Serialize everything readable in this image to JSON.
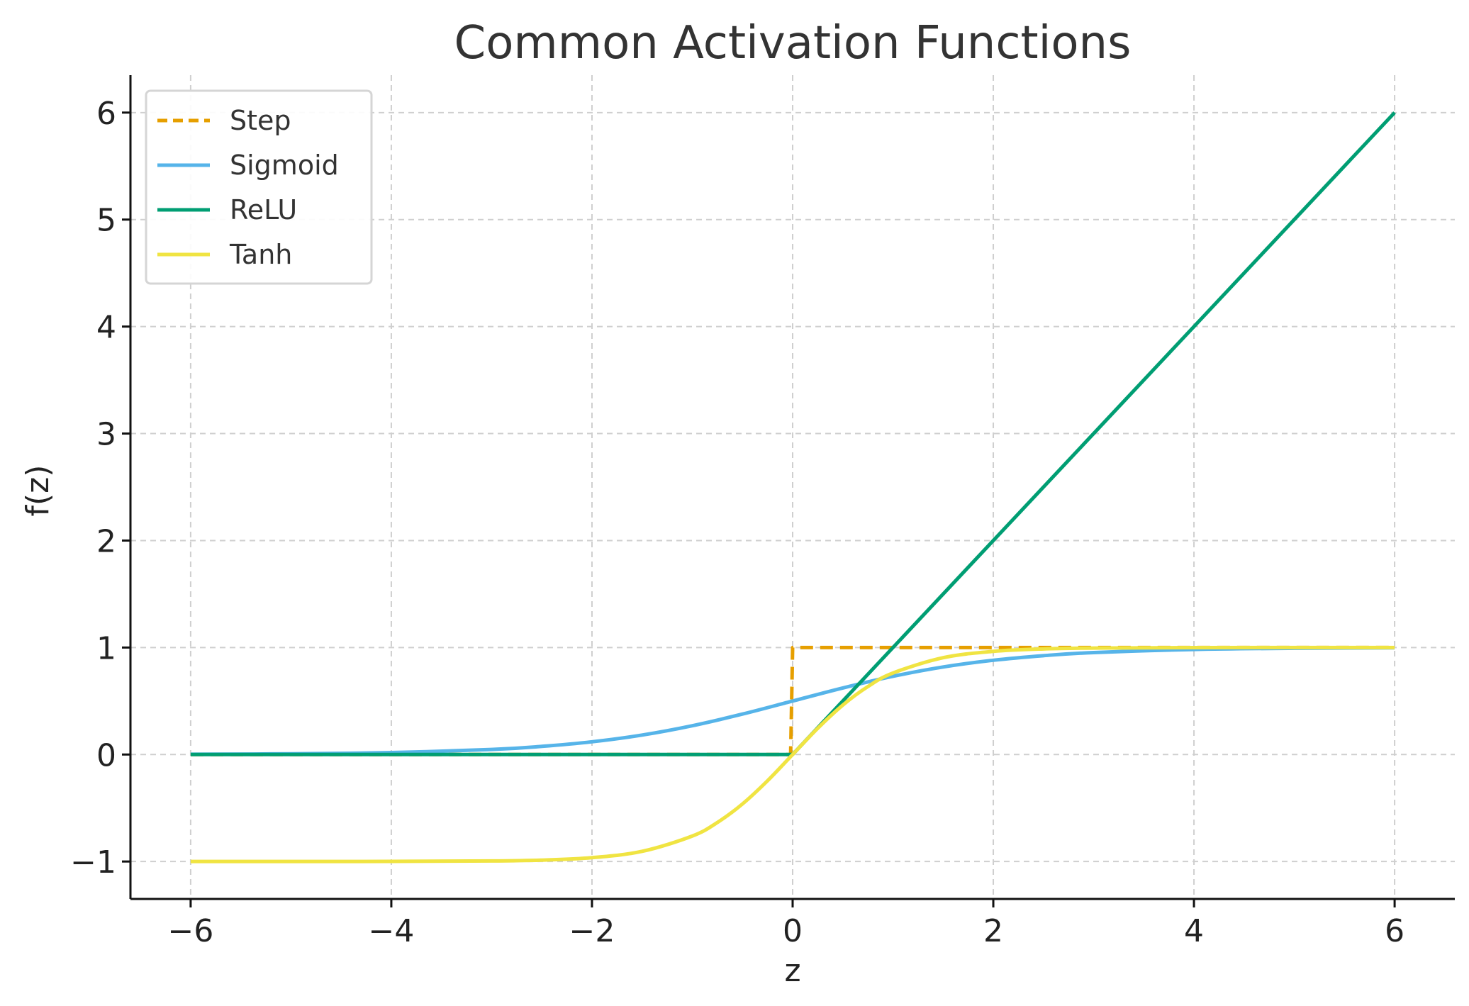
{
  "chart_data": {
    "type": "line",
    "title": "Common Activation Functions",
    "xlabel": "z",
    "ylabel": "f(z)",
    "xlim": [
      -6.6,
      6.6
    ],
    "ylim": [
      -1.35,
      6.35
    ],
    "xticks": [
      -6,
      -4,
      -2,
      0,
      2,
      4,
      6
    ],
    "yticks": [
      -1,
      0,
      1,
      2,
      3,
      4,
      5,
      6
    ],
    "xtick_labels": [
      "−6",
      "−4",
      "−2",
      "0",
      "2",
      "4",
      "6"
    ],
    "ytick_labels": [
      "−1",
      "0",
      "1",
      "2",
      "3",
      "4",
      "5",
      "6"
    ],
    "grid": true,
    "legend_position": "top-left",
    "series": [
      {
        "name": "Step",
        "color": "#E69F00",
        "style": "dashed",
        "x": [
          -6,
          -0.02,
          0,
          6
        ],
        "y": [
          0,
          0,
          1,
          1
        ]
      },
      {
        "name": "Sigmoid",
        "color": "#56B4E9",
        "style": "solid",
        "x": [
          -6,
          -5,
          -4,
          -3,
          -2.5,
          -2,
          -1.5,
          -1,
          -0.5,
          0,
          0.5,
          1,
          1.5,
          2,
          2.5,
          3,
          4,
          5,
          6
        ],
        "y": [
          0.0025,
          0.0067,
          0.018,
          0.047,
          0.076,
          0.119,
          0.182,
          0.269,
          0.378,
          0.5,
          0.622,
          0.731,
          0.818,
          0.881,
          0.924,
          0.953,
          0.982,
          0.993,
          0.9975
        ]
      },
      {
        "name": "ReLU",
        "color": "#009E73",
        "style": "solid",
        "x": [
          -6,
          0,
          6
        ],
        "y": [
          0,
          0,
          6
        ]
      },
      {
        "name": "Tanh",
        "color": "#F0E442",
        "style": "solid",
        "x": [
          -6,
          -4,
          -3,
          -2.5,
          -2,
          -1.5,
          -1,
          -0.75,
          -0.5,
          -0.25,
          0,
          0.25,
          0.5,
          0.75,
          1,
          1.5,
          2,
          2.5,
          3,
          4,
          6
        ],
        "y": [
          -1,
          -0.999,
          -0.995,
          -0.987,
          -0.964,
          -0.905,
          -0.762,
          -0.635,
          -0.462,
          -0.245,
          0,
          0.245,
          0.462,
          0.635,
          0.762,
          0.905,
          0.964,
          0.987,
          0.995,
          0.999,
          1
        ]
      }
    ]
  }
}
